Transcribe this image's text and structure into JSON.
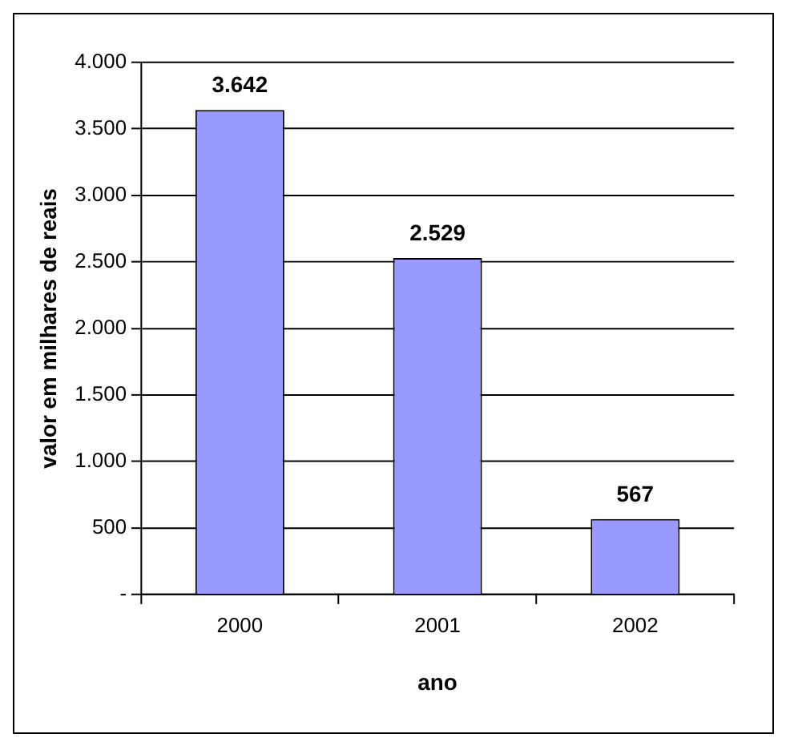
{
  "chart_data": {
    "type": "bar",
    "xlabel": "ano",
    "ylabel": "valor em milhares de reais",
    "categories": [
      "2000",
      "2001",
      "2002"
    ],
    "values": [
      3642,
      2529,
      567
    ],
    "color": "#9999ff",
    "value_labels": [
      "3.642",
      "2.529",
      "567"
    ],
    "ylim": [
      0,
      4000
    ],
    "yticks": [
      {
        "value": 0,
        "label": "-"
      },
      500,
      {
        "value": 1000,
        "label": "1.000"
      },
      {
        "value": 1500,
        "label": "1.500"
      },
      {
        "value": 2000,
        "label": "2.000"
      },
      {
        "value": 2500,
        "label": "2.500"
      },
      {
        "value": 3000,
        "label": "3.000"
      },
      {
        "value": 3500,
        "label": "3.500"
      },
      {
        "value": 4000,
        "label": "4.000"
      }
    ],
    "grid": "y",
    "legend": false
  }
}
